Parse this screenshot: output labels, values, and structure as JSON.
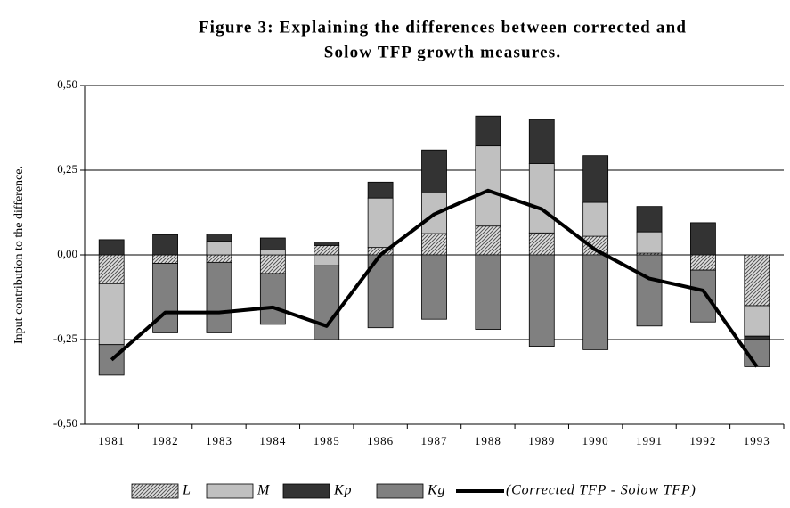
{
  "chart_data": {
    "type": "bar",
    "stacked": true,
    "title": [
      "Figure 3: Explaining the differences between corrected and",
      "Solow TFP growth measures."
    ],
    "y_label": "Input contribution to the difference.",
    "categories": [
      "1981",
      "1982",
      "1983",
      "1984",
      "1985",
      "1986",
      "1987",
      "1988",
      "1989",
      "1990",
      "1991",
      "1992",
      "1993"
    ],
    "series": [
      {
        "name": "L",
        "color": "#9a9a9a",
        "pattern": "hatch",
        "values": [
          -0.085,
          -0.025,
          -0.022,
          -0.055,
          0.028,
          0.022,
          0.063,
          0.085,
          0.065,
          0.055,
          0.005,
          -0.045,
          -0.15
        ]
      },
      {
        "name": "M",
        "color": "#c0c0c0",
        "values": [
          -0.18,
          0,
          0.04,
          0.015,
          -0.032,
          0.146,
          0.12,
          0.237,
          0.205,
          0.1,
          0.063,
          0,
          -0.09
        ]
      },
      {
        "name": "Kp",
        "color": "#333333",
        "values": [
          0.045,
          0.06,
          0.022,
          0.035,
          0.01,
          0.047,
          0.127,
          0.088,
          0.13,
          0.138,
          0.075,
          0.095,
          -0.01
        ]
      },
      {
        "name": "Kg",
        "color": "#808080",
        "values": [
          -0.09,
          -0.205,
          -0.208,
          -0.15,
          -0.218,
          -0.215,
          -0.19,
          -0.22,
          -0.27,
          -0.28,
          -0.21,
          -0.153,
          -0.08
        ]
      }
    ],
    "line": {
      "name": "(Corrected TFP - Solow TFP)",
      "color": "#000000",
      "values": [
        -0.31,
        -0.17,
        -0.17,
        -0.155,
        -0.21,
        0.0,
        0.12,
        0.19,
        0.135,
        0.015,
        -0.07,
        -0.105,
        -0.33
      ]
    },
    "ylim": [
      -0.5,
      0.5
    ],
    "yticks": [
      {
        "value": -0.5,
        "label": "-0,50"
      },
      {
        "value": -0.25,
        "label": "-0,25"
      },
      {
        "value": 0,
        "label": "0,00"
      },
      {
        "value": 0.25,
        "label": "0,25"
      },
      {
        "value": 0.5,
        "label": "0,50"
      }
    ],
    "grid": true,
    "legend": "bottom"
  }
}
